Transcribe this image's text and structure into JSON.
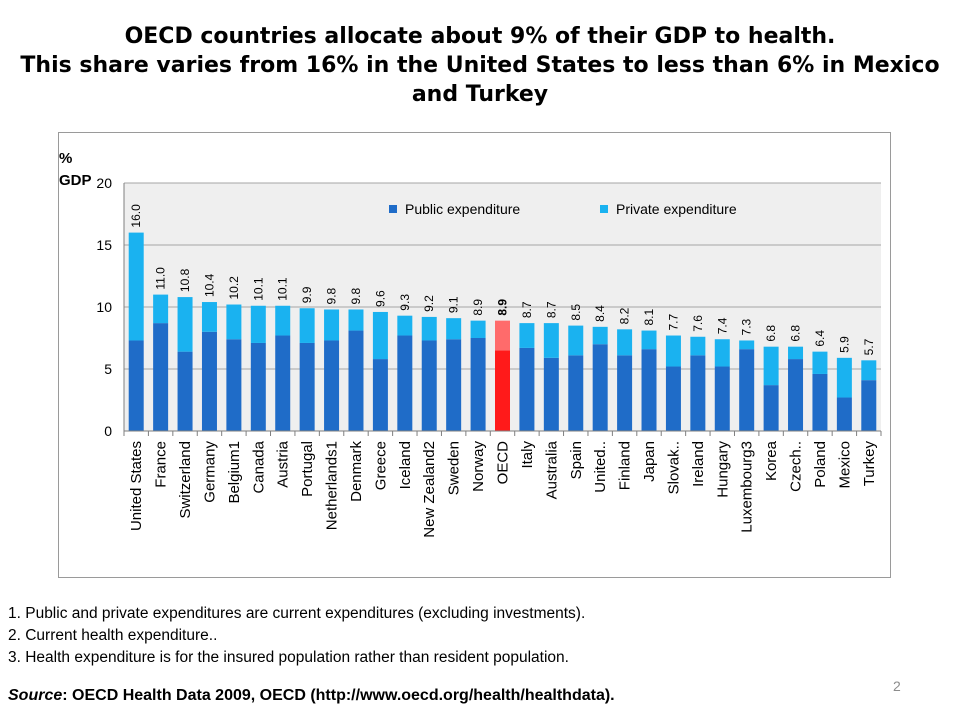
{
  "slide": {
    "title_line1": "OECD countries allocate about 9% of their GDP to health.",
    "title_line2": "This share varies from 16% in the United States to less than 6% in Mexico",
    "title_line3": "and Turkey",
    "page_number": "2"
  },
  "notes": {
    "items": [
      "1. Public and private expenditures are current expenditures (excluding investments).",
      "2. Current health expenditure..",
      "3. Health expenditure is for the insured population rather than resident population."
    ],
    "source_prefix": "Source",
    "source_text": ": OECD Health Data 2009, OECD (http://www.oecd.org/health/healthdata)."
  },
  "chart_data": {
    "type": "bar",
    "stacked": true,
    "unit_label": "% GDP",
    "ylim": [
      0,
      20
    ],
    "yticks": [
      0,
      5,
      10,
      15,
      20
    ],
    "grid": true,
    "legend_position": "top-right",
    "categories": [
      "United States",
      "France",
      "Switzerland",
      "Germany",
      "Belgium1",
      "Canada",
      "Austria",
      "Portugal",
      "Netherlands1",
      "Denmark",
      "Greece",
      "Iceland",
      "New Zealand2",
      "Sweden",
      "Norway",
      "OECD",
      "Italy",
      "Australia",
      "Spain",
      "United..",
      "Finland",
      "Japan",
      "Slovak..",
      "Ireland",
      "Hungary",
      "Luxembourg3",
      "Korea",
      "Czech..",
      "Poland",
      "Mexico",
      "Turkey"
    ],
    "totals": [
      "16.0",
      "11.0",
      "10.8",
      "10.4",
      "10.2",
      "10.1",
      "10.1",
      "9.9",
      "9.8",
      "9.8",
      "9.6",
      "9.3",
      "9.2",
      "9.1",
      "8.9",
      "8.9",
      "8.7",
      "8.7",
      "8.5",
      "8.4",
      "8.2",
      "8.1",
      "7.7",
      "7.6",
      "7.4",
      "7.3",
      "6.8",
      "6.8",
      "6.4",
      "5.9",
      "5.7"
    ],
    "highlight_category": "OECD",
    "series": [
      {
        "name": "Public expenditure",
        "color": "#1f6cc8",
        "highlight_color": "#ff1a1a",
        "values": [
          7.3,
          8.7,
          6.4,
          8.0,
          7.4,
          7.1,
          7.7,
          7.1,
          7.3,
          8.1,
          5.8,
          7.7,
          7.3,
          7.4,
          7.5,
          6.5,
          6.7,
          5.9,
          6.1,
          7.0,
          6.1,
          6.6,
          5.2,
          6.1,
          5.2,
          6.6,
          3.7,
          5.8,
          4.6,
          2.7,
          4.1
        ]
      },
      {
        "name": "Private expenditure",
        "color": "#1ab2f0",
        "highlight_color": "#ff6b6b",
        "values": [
          8.7,
          2.3,
          4.4,
          2.4,
          2.8,
          3.0,
          2.4,
          2.8,
          2.5,
          1.7,
          3.8,
          1.6,
          1.9,
          1.7,
          1.4,
          2.4,
          2.0,
          2.8,
          2.4,
          1.4,
          2.1,
          1.5,
          2.5,
          1.5,
          2.2,
          0.7,
          3.1,
          1.0,
          1.8,
          3.2,
          1.6
        ]
      }
    ]
  }
}
